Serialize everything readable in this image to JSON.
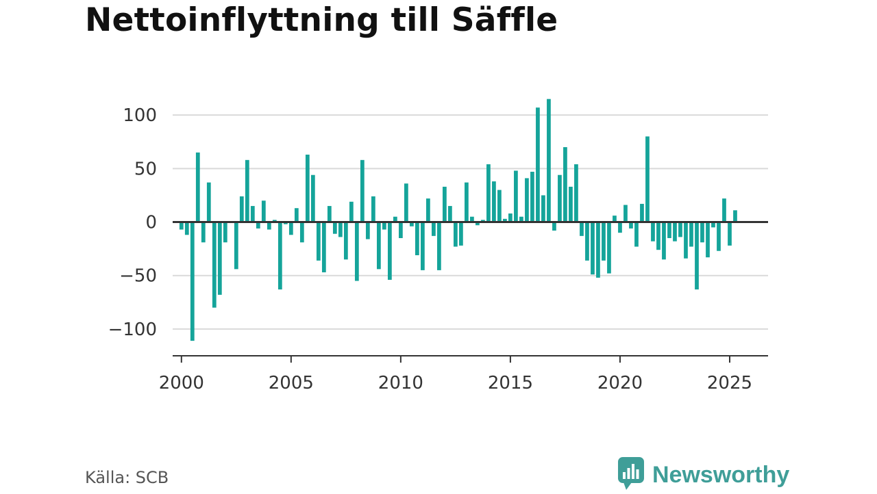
{
  "title": "Nettoinflyttning till Säffle",
  "source": "Källa: SCB",
  "brand": {
    "name": "Newsworthy",
    "icon": "newsworthy-logo-icon",
    "color": "#3f9e98"
  },
  "colors": {
    "bar": "#15a49a",
    "zero_line": "#333333",
    "grid": "#d9d9d9",
    "axis": "#333333"
  },
  "chart_data": {
    "type": "bar",
    "title": "Nettoinflyttning till Säffle",
    "xlabel": "",
    "ylabel": "",
    "ylim": [
      -125,
      118
    ],
    "xlim": [
      1999.6,
      2026.75
    ],
    "grid": true,
    "y_ticks": [
      100,
      50,
      0,
      -50,
      -100
    ],
    "y_tick_labels": [
      "100",
      "50",
      "0",
      "−50",
      "−100"
    ],
    "x_ticks": [
      2000,
      2005,
      2010,
      2015,
      2020,
      2025
    ],
    "x_tick_labels": [
      "2000",
      "2005",
      "2010",
      "2015",
      "2020",
      "2025"
    ],
    "periods": [
      "2000 K1",
      "2000 K2",
      "2000 K3",
      "2000 K4",
      "2001 K1",
      "2001 K2",
      "2001 K3",
      "2001 K4",
      "2002 K1",
      "2002 K2",
      "2002 K3",
      "2002 K4",
      "2003 K1",
      "2003 K2",
      "2003 K3",
      "2003 K4",
      "2004 K1",
      "2004 K2",
      "2004 K3",
      "2004 K4",
      "2005 K1",
      "2005 K2",
      "2005 K3",
      "2005 K4",
      "2006 K1",
      "2006 K2",
      "2006 K3",
      "2006 K4",
      "2007 K1",
      "2007 K2",
      "2007 K3",
      "2007 K4",
      "2008 K1",
      "2008 K2",
      "2008 K3",
      "2008 K4",
      "2009 K1",
      "2009 K2",
      "2009 K3",
      "2009 K4",
      "2010 K1",
      "2010 K2",
      "2010 K3",
      "2010 K4",
      "2011 K1",
      "2011 K2",
      "2011 K3",
      "2011 K4",
      "2012 K1",
      "2012 K2",
      "2012 K3",
      "2012 K4",
      "2013 K1",
      "2013 K2",
      "2013 K3",
      "2013 K4",
      "2014 K1",
      "2014 K2",
      "2014 K3",
      "2014 K4",
      "2015 K1",
      "2015 K2",
      "2015 K3",
      "2015 K4",
      "2016 K1",
      "2016 K2",
      "2016 K3",
      "2016 K4",
      "2017 K1",
      "2017 K2",
      "2017 K3",
      "2017 K4",
      "2018 K1",
      "2018 K2",
      "2018 K3",
      "2018 K4",
      "2019 K1",
      "2019 K2",
      "2019 K3",
      "2019 K4",
      "2020 K1",
      "2020 K2",
      "2020 K3",
      "2020 K4",
      "2021 K1",
      "2021 K2",
      "2021 K3",
      "2021 K4",
      "2022 K1",
      "2022 K2",
      "2022 K3",
      "2022 K4",
      "2023 K1",
      "2023 K2",
      "2023 K3",
      "2023 K4",
      "2024 K1",
      "2024 K2",
      "2024 K3",
      "2024 K4",
      "2025 K1",
      "2025 K2"
    ],
    "x": [
      2000.0,
      2000.25,
      2000.5,
      2000.75,
      2001.0,
      2001.25,
      2001.5,
      2001.75,
      2002.0,
      2002.25,
      2002.5,
      2002.75,
      2003.0,
      2003.25,
      2003.5,
      2003.75,
      2004.0,
      2004.25,
      2004.5,
      2004.75,
      2005.0,
      2005.25,
      2005.5,
      2005.75,
      2006.0,
      2006.25,
      2006.5,
      2006.75,
      2007.0,
      2007.25,
      2007.5,
      2007.75,
      2008.0,
      2008.25,
      2008.5,
      2008.75,
      2009.0,
      2009.25,
      2009.5,
      2009.75,
      2010.0,
      2010.25,
      2010.5,
      2010.75,
      2011.0,
      2011.25,
      2011.5,
      2011.75,
      2012.0,
      2012.25,
      2012.5,
      2012.75,
      2013.0,
      2013.25,
      2013.5,
      2013.75,
      2014.0,
      2014.25,
      2014.5,
      2014.75,
      2015.0,
      2015.25,
      2015.5,
      2015.75,
      2016.0,
      2016.25,
      2016.5,
      2016.75,
      2017.0,
      2017.25,
      2017.5,
      2017.75,
      2018.0,
      2018.25,
      2018.5,
      2018.75,
      2019.0,
      2019.25,
      2019.5,
      2019.75,
      2020.0,
      2020.25,
      2020.5,
      2020.75,
      2021.0,
      2021.25,
      2021.5,
      2021.75,
      2022.0,
      2022.25,
      2022.5,
      2022.75,
      2023.0,
      2023.25,
      2023.5,
      2023.75,
      2024.0,
      2024.25,
      2024.5,
      2024.75,
      2025.0,
      2025.25
    ],
    "values": [
      -7,
      -12,
      -111,
      65,
      -19,
      37,
      -80,
      -68,
      -19,
      0,
      -44,
      24,
      58,
      15,
      -6,
      20,
      -7,
      2,
      -63,
      -2,
      -12,
      13,
      -19,
      63,
      44,
      -36,
      -47,
      15,
      -11,
      -14,
      -35,
      19,
      -55,
      58,
      -16,
      24,
      -44,
      -7,
      -54,
      5,
      -15,
      36,
      -4,
      -31,
      -45,
      22,
      -13,
      -45,
      33,
      15,
      -23,
      -22,
      37,
      5,
      -3,
      2,
      54,
      38,
      30,
      3,
      8,
      48,
      5,
      41,
      47,
      107,
      25,
      115,
      -8,
      44,
      70,
      33,
      54,
      -13,
      -36,
      -49,
      -52,
      -36,
      -48,
      6,
      -10,
      16,
      -6,
      -23,
      17,
      80,
      -18,
      -26,
      -35,
      -15,
      -18,
      -14,
      -34,
      -23,
      -63,
      -19,
      -33,
      -5,
      -27,
      22,
      -22,
      11
    ]
  }
}
